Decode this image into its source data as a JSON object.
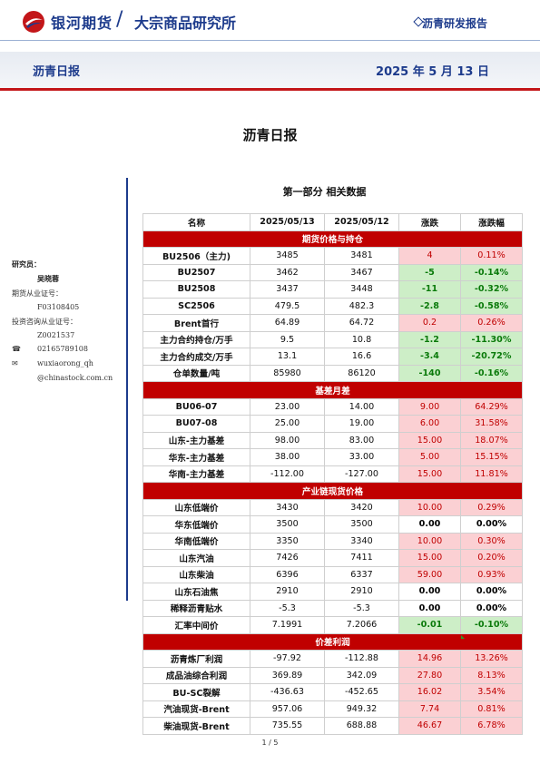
{
  "header": {
    "brand": "银河期货",
    "brand_sub": "大宗商品研究所",
    "report_type": "沥青研发报告",
    "band_left": "沥青日报",
    "band_right": "2025 年 5 月 13 日"
  },
  "doc_title": "沥青日报",
  "section_title": "第一部分 相关数据",
  "sidebar": {
    "researcher_label": "研究员：",
    "researcher_name": "吴晓蓉",
    "futures_cert_label": "期货从业证号：",
    "futures_cert": "F03108405",
    "invest_cert_label": "投资咨询从业证号：",
    "invest_cert": "Z0021537",
    "phone": "02165789108",
    "email_1": "wuxiaorong_qh",
    "email_2": "@chinastock.com.cn"
  },
  "table": {
    "columns": [
      "名称",
      "2025/05/13",
      "2025/05/12",
      "涨跌",
      "涨跌幅"
    ],
    "sections": [
      {
        "title": "期货价格与持仓",
        "rows": [
          {
            "name": "BU2506（主力)",
            "d1": "3485",
            "d2": "3481",
            "chg": "4",
            "pct": "0.11%",
            "dir": "pos"
          },
          {
            "name": "BU2507",
            "d1": "3462",
            "d2": "3467",
            "chg": "-5",
            "pct": "-0.14%",
            "dir": "neg"
          },
          {
            "name": "BU2508",
            "d1": "3437",
            "d2": "3448",
            "chg": "-11",
            "pct": "-0.32%",
            "dir": "neg"
          },
          {
            "name": "SC2506",
            "d1": "479.5",
            "d2": "482.3",
            "chg": "-2.8",
            "pct": "-0.58%",
            "dir": "neg"
          },
          {
            "name": "Brent首行",
            "d1": "64.89",
            "d2": "64.72",
            "chg": "0.2",
            "pct": "0.26%",
            "dir": "pos"
          },
          {
            "name": "主力合约持仓/万手",
            "d1": "9.5",
            "d2": "10.8",
            "chg": "-1.2",
            "pct": "-11.30%",
            "dir": "neg"
          },
          {
            "name": "主力合约成交/万手",
            "d1": "13.1",
            "d2": "16.6",
            "chg": "-3.4",
            "pct": "-20.72%",
            "dir": "neg"
          },
          {
            "name": "仓单数量/吨",
            "d1": "85980",
            "d2": "86120",
            "chg": "-140",
            "pct": "-0.16%",
            "dir": "neg"
          }
        ]
      },
      {
        "title": "基差月差",
        "rows": [
          {
            "name": "BU06-07",
            "d1": "23.00",
            "d2": "14.00",
            "chg": "9.00",
            "pct": "64.29%",
            "dir": "pos"
          },
          {
            "name": "BU07-08",
            "d1": "25.00",
            "d2": "19.00",
            "chg": "6.00",
            "pct": "31.58%",
            "dir": "pos"
          },
          {
            "name": "山东-主力基差",
            "d1": "98.00",
            "d2": "83.00",
            "chg": "15.00",
            "pct": "18.07%",
            "dir": "pos"
          },
          {
            "name": "华东-主力基差",
            "d1": "38.00",
            "d2": "33.00",
            "chg": "5.00",
            "pct": "15.15%",
            "dir": "pos"
          },
          {
            "name": "华南-主力基差",
            "d1": "-112.00",
            "d2": "-127.00",
            "chg": "15.00",
            "pct": "11.81%",
            "dir": "pos"
          }
        ]
      },
      {
        "title": "产业链现货价格",
        "rows": [
          {
            "name": "山东低端价",
            "d1": "3430",
            "d2": "3420",
            "chg": "10.00",
            "pct": "0.29%",
            "dir": "pos"
          },
          {
            "name": "华东低端价",
            "d1": "3500",
            "d2": "3500",
            "chg": "0.00",
            "pct": "0.00%",
            "dir": "zero"
          },
          {
            "name": "华南低端价",
            "d1": "3350",
            "d2": "3340",
            "chg": "10.00",
            "pct": "0.30%",
            "dir": "pos"
          },
          {
            "name": "山东汽油",
            "d1": "7426",
            "d2": "7411",
            "chg": "15.00",
            "pct": "0.20%",
            "dir": "pos"
          },
          {
            "name": "山东柴油",
            "d1": "6396",
            "d2": "6337",
            "chg": "59.00",
            "pct": "0.93%",
            "dir": "pos"
          },
          {
            "name": "山东石油焦",
            "d1": "2910",
            "d2": "2910",
            "chg": "0.00",
            "pct": "0.00%",
            "dir": "zero"
          },
          {
            "name": "稀释沥青贴水",
            "d1": "-5.3",
            "d2": "-5.3",
            "chg": "0.00",
            "pct": "0.00%",
            "dir": "zero"
          },
          {
            "name": "汇率中间价",
            "d1": "7.1991",
            "d2": "7.2066",
            "chg": "-0.01",
            "pct": "-0.10%",
            "dir": "neg"
          }
        ]
      },
      {
        "title": "价差利润",
        "rows": [
          {
            "name": "沥青炼厂利润",
            "d1": "-97.92",
            "d2": "-112.88",
            "chg": "14.96",
            "pct": "13.26%",
            "dir": "pos"
          },
          {
            "name": "成品油综合利润",
            "d1": "369.89",
            "d2": "342.09",
            "chg": "27.80",
            "pct": "8.13%",
            "dir": "pos"
          },
          {
            "name": "BU-SC裂解",
            "d1": "-436.63",
            "d2": "-452.65",
            "chg": "16.02",
            "pct": "3.54%",
            "dir": "pos"
          },
          {
            "name": "汽油现货-Brent",
            "d1": "957.06",
            "d2": "949.32",
            "chg": "7.74",
            "pct": "0.81%",
            "dir": "pos"
          },
          {
            "name": "柴油现货-Brent",
            "d1": "735.55",
            "d2": "688.88",
            "chg": "46.67",
            "pct": "6.78%",
            "dir": "pos"
          }
        ]
      }
    ]
  },
  "footer": {
    "page": "1 / 5"
  },
  "colors": {
    "brand_blue": "#1d3b8c",
    "accent_red": "#c31619",
    "up": "#fbd0d3",
    "down": "#cdeec7"
  }
}
